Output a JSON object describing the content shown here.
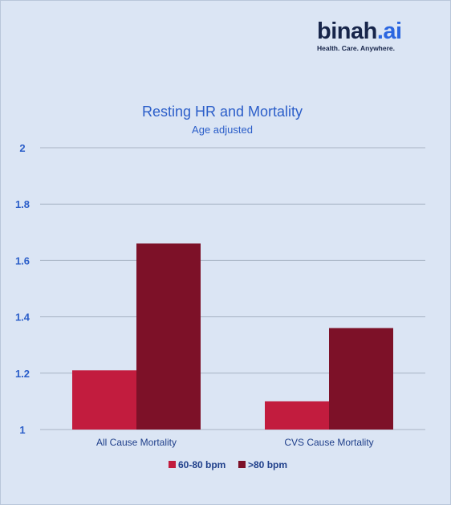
{
  "logo": {
    "word_main": "binah",
    "word_accent": ".ai",
    "tagline": "Health. Care. Anywhere."
  },
  "colors": {
    "background": "#dbe5f4",
    "text_blue": "#2b5ec9",
    "axis_label": "#1f3f8a",
    "series_1": "#c21c3e",
    "series_2": "#7d1128",
    "grid": "#a8b3c4"
  },
  "chart_data": {
    "type": "bar",
    "title": "Resting HR and Mortality",
    "subtitle": "Age adjusted",
    "xlabel": "",
    "ylabel": "",
    "categories": [
      "All Cause Mortality",
      "CVS Cause Mortality"
    ],
    "series": [
      {
        "name": "60-80 bpm",
        "values": [
          1.21,
          1.1
        ]
      },
      {
        "name": ">80 bpm",
        "values": [
          1.66,
          1.36
        ]
      }
    ],
    "ylim": [
      1,
      2
    ],
    "yticks": [
      "1",
      "1.2",
      "1.4",
      "1.6",
      "1.8",
      "2"
    ],
    "grid": true,
    "legend": "bottom"
  }
}
